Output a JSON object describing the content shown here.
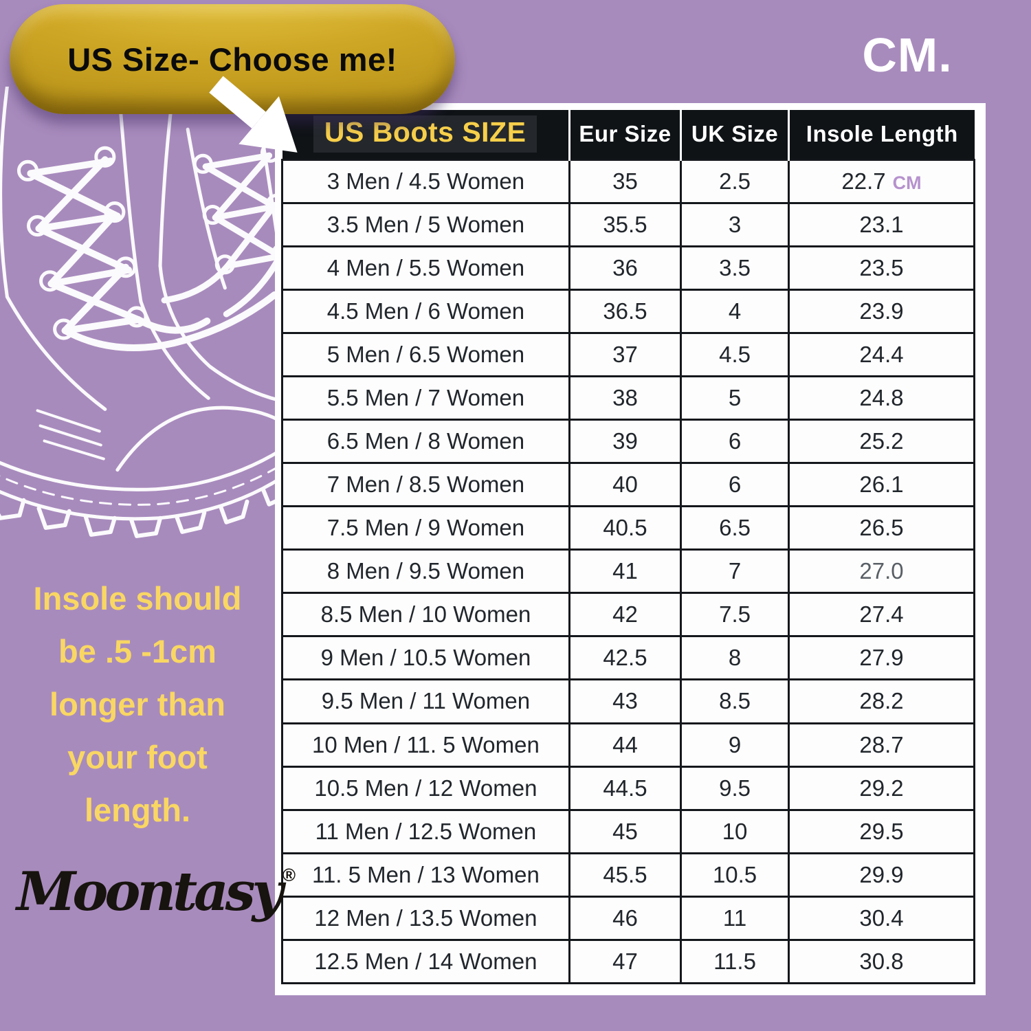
{
  "badge": {
    "label": "US Size- Choose me!"
  },
  "unit": {
    "label": "CM."
  },
  "side_note": {
    "text": "Insole should\nbe .5 -1cm\nlonger than\nyour foot\nlength."
  },
  "brand": {
    "name": "Moontasy",
    "registered": "®"
  },
  "table": {
    "headers": [
      "US Boots SIZE",
      "Eur Size",
      "UK Size",
      "Insole Length"
    ],
    "rows": [
      {
        "us": "3 Men / 4.5 Women",
        "eur": "35",
        "uk": "2.5",
        "insole": "22.7",
        "insole_suffix": "CM"
      },
      {
        "us": "3.5 Men / 5 Women",
        "eur": "35.5",
        "uk": "3",
        "insole": "23.1"
      },
      {
        "us": "4 Men / 5.5 Women",
        "eur": "36",
        "uk": "3.5",
        "insole": "23.5"
      },
      {
        "us": "4.5 Men / 6 Women",
        "eur": "36.5",
        "uk": "4",
        "insole": "23.9"
      },
      {
        "us": "5 Men / 6.5 Women",
        "eur": "37",
        "uk": "4.5",
        "insole": "24.4"
      },
      {
        "us": "5.5 Men / 7 Women",
        "eur": "38",
        "uk": "5",
        "insole": "24.8"
      },
      {
        "us": "6.5 Men / 8 Women",
        "eur": "39",
        "uk": "6",
        "insole": "25.2"
      },
      {
        "us": "7 Men / 8.5 Women",
        "eur": "40",
        "uk": "6",
        "insole": "26.1"
      },
      {
        "us": "7.5 Men / 9 Women",
        "eur": "40.5",
        "uk": "6.5",
        "insole": "26.5"
      },
      {
        "us": "8 Men / 9.5 Women",
        "eur": "41",
        "uk": "7",
        "insole": "27.0",
        "muted": true
      },
      {
        "us": "8.5 Men / 10 Women",
        "eur": "42",
        "uk": "7.5",
        "insole": "27.4"
      },
      {
        "us": "9 Men / 10.5 Women",
        "eur": "42.5",
        "uk": "8",
        "insole": "27.9"
      },
      {
        "us": "9.5 Men / 11 Women",
        "eur": "43",
        "uk": "8.5",
        "insole": "28.2"
      },
      {
        "us": "10 Men / 11. 5 Women",
        "eur": "44",
        "uk": "9",
        "insole": "28.7"
      },
      {
        "us": "10.5 Men / 12 Women",
        "eur": "44.5",
        "uk": "9.5",
        "insole": "29.2"
      },
      {
        "us": "11 Men / 12.5 Women",
        "eur": "45",
        "uk": "10",
        "insole": "29.5"
      },
      {
        "us": "11. 5 Men / 13 Women",
        "eur": "45.5",
        "uk": "10.5",
        "insole": "29.9"
      },
      {
        "us": "12 Men / 13.5 Women",
        "eur": "46",
        "uk": "11",
        "insole": "30.4"
      },
      {
        "us": "12.5 Men / 14 Women",
        "eur": "47",
        "uk": "11.5",
        "insole": "30.8"
      }
    ]
  },
  "colors": {
    "background_purple": "#a88bbd",
    "badge_gold": "#cfa726",
    "header_black": "#0f1316",
    "header_yellow": "#f7cf4a",
    "note_yellow": "#f9d763",
    "cm_suffix_purple": "#b692cd"
  },
  "icons": {
    "arrow": "arrow-down-right-icon",
    "illustration": "boots-line-art"
  },
  "chart_data": {
    "type": "table",
    "title": "US Boots SIZE conversion chart (Insole Length in CM)",
    "columns": [
      "US Boots SIZE",
      "Eur Size",
      "UK Size",
      "Insole Length (CM)"
    ],
    "rows": [
      [
        "3 Men / 4.5 Women",
        35,
        2.5,
        22.7
      ],
      [
        "3.5 Men / 5 Women",
        35.5,
        3,
        23.1
      ],
      [
        "4 Men / 5.5 Women",
        36,
        3.5,
        23.5
      ],
      [
        "4.5 Men / 6 Women",
        36.5,
        4,
        23.9
      ],
      [
        "5 Men / 6.5 Women",
        37,
        4.5,
        24.4
      ],
      [
        "5.5 Men / 7 Women",
        38,
        5,
        24.8
      ],
      [
        "6.5 Men / 8 Women",
        39,
        6,
        25.2
      ],
      [
        "7 Men / 8.5 Women",
        40,
        6,
        26.1
      ],
      [
        "7.5 Men / 9 Women",
        40.5,
        6.5,
        26.5
      ],
      [
        "8 Men / 9.5 Women",
        41,
        7,
        27.0
      ],
      [
        "8.5 Men / 10 Women",
        42,
        7.5,
        27.4
      ],
      [
        "9 Men / 10.5 Women",
        42.5,
        8,
        27.9
      ],
      [
        "9.5 Men / 11 Women",
        43,
        8.5,
        28.2
      ],
      [
        "10 Men / 11. 5 Women",
        44,
        9,
        28.7
      ],
      [
        "10.5 Men / 12 Women",
        44.5,
        9.5,
        29.2
      ],
      [
        "11 Men / 12.5 Women",
        45,
        10,
        29.5
      ],
      [
        "11. 5 Men / 13 Women",
        45.5,
        10.5,
        29.9
      ],
      [
        "12 Men / 13.5 Women",
        46,
        11,
        30.4
      ],
      [
        "12.5 Men / 14 Women",
        47,
        11.5,
        30.8
      ]
    ]
  }
}
